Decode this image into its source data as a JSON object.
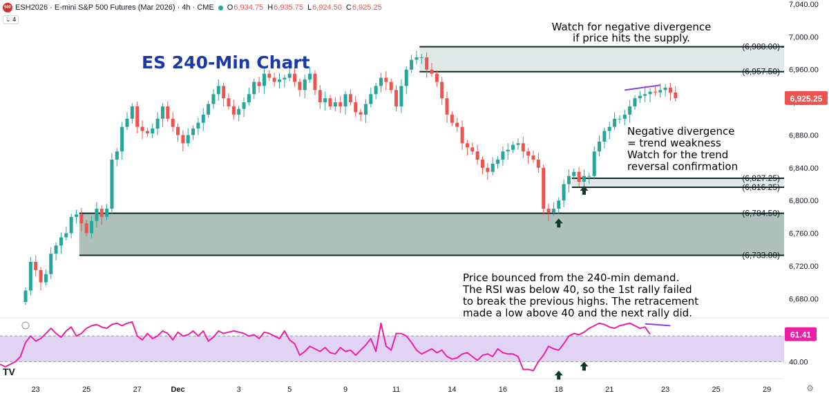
{
  "header": {
    "logo_text": "500",
    "symbol": "ESH2026",
    "name": "E-mini S&P 500 Futures (Mar 2026)",
    "interval": "4h",
    "exchange": "CME",
    "ohlc": [
      {
        "label": "O",
        "value": "6,934.75"
      },
      {
        "label": "H",
        "value": "6,935.75"
      },
      {
        "label": "L",
        "value": "6,924.50"
      },
      {
        "label": "C",
        "value": "6,925.25"
      }
    ],
    "indicator_count": "4"
  },
  "colors": {
    "up": "#26a69a",
    "down": "#ef5350",
    "zone_fill": "#9fb5ae",
    "zone_light": "#d6e2df",
    "zone_line": "#0c2a23",
    "rsi_line": "#ec1fa6",
    "rsi_band": "#d9c9ef",
    "div_line": "#8a3ee8",
    "title": "#1939a6",
    "arrow": "#0e3b31"
  },
  "chart_data": {
    "type": "candlestick",
    "title": "ES 240-Min Chart",
    "y_axis": {
      "min": 6660,
      "max": 7040,
      "ticks": [
        "6,680.00",
        "6,720.00",
        "6,760.00",
        "6,800.00",
        "6,840.00",
        "6,880.00",
        "6,920.00",
        "6,960.00",
        "7,000.00",
        "7,040.00"
      ],
      "tick_values": [
        6680,
        6720,
        6760,
        6800,
        6840,
        6880,
        6920,
        6960,
        7000,
        7040
      ]
    },
    "x_axis": {
      "labels": [
        "23",
        "25",
        "27",
        "Dec",
        "3",
        "5",
        "9",
        "11",
        "14",
        "16",
        "18",
        "21",
        "23",
        "25",
        "29"
      ],
      "bar_index": [
        2,
        12,
        22,
        30,
        42,
        52,
        63,
        73,
        84,
        94,
        105,
        115,
        126,
        136,
        146
      ],
      "bold": [
        "Dec"
      ]
    },
    "last_price": "6,925.25",
    "last_value": 6925.25,
    "zones": [
      {
        "name": "supply-zone",
        "top": 6988.0,
        "bottom": 6957.5,
        "start_bar": 78,
        "top_label": "(6,988.00)",
        "bottom_label": "(6,957.50)"
      },
      {
        "name": "minor-demand-zone",
        "top": 6827.25,
        "bottom": 6816.25,
        "start_bar": 108,
        "top_label": "(6,827.25)",
        "bottom_label": "(6,816.25)"
      },
      {
        "name": "demand-zone",
        "top": 6784.5,
        "bottom": 6733.0,
        "start_bar": 11,
        "top_label": "(6,784.50)",
        "bottom_label": "(6,733.00)"
      }
    ],
    "closes": [
      6690,
      6725,
      6715,
      6700,
      6710,
      6735,
      6745,
      6755,
      6760,
      6780,
      6783,
      6772,
      6760,
      6775,
      6790,
      6780,
      6790,
      6850,
      6860,
      6890,
      6900,
      6915,
      6890,
      6885,
      6882,
      6888,
      6900,
      6915,
      6900,
      6890,
      6880,
      6870,
      6880,
      6888,
      6895,
      6905,
      6918,
      6930,
      6940,
      6925,
      6915,
      6905,
      6912,
      6920,
      6930,
      6945,
      6940,
      6955,
      6950,
      6945,
      6948,
      6950,
      6955,
      6945,
      6935,
      6948,
      6955,
      6935,
      6920,
      6925,
      6915,
      6920,
      6915,
      6930,
      6920,
      6908,
      6905,
      6918,
      6930,
      6940,
      6950,
      6945,
      6935,
      6915,
      6940,
      6960,
      6972,
      6975,
      6975,
      6960,
      6955,
      6945,
      6925,
      6905,
      6895,
      6890,
      6870,
      6865,
      6860,
      6850,
      6840,
      6835,
      6845,
      6850,
      6860,
      6862,
      6868,
      6870,
      6860,
      6855,
      6850,
      6840,
      6790,
      6785,
      6790,
      6800,
      6820,
      6830,
      6835,
      6823,
      6830,
      6830,
      6860,
      6872,
      6885,
      6890,
      6900,
      6900,
      6905,
      6915,
      6925,
      6928,
      6930,
      6933,
      6932,
      6935,
      6938,
      6932,
      6925
    ],
    "rsi": {
      "value_label": "61.41",
      "last_value": 61.41,
      "level_label": "40.00",
      "band_top": 60,
      "band_bottom": 40,
      "min": 30,
      "max": 72,
      "values": [
        38,
        36,
        38,
        40,
        44,
        55,
        60,
        56,
        58,
        62,
        66,
        62,
        59,
        64,
        67,
        60,
        62,
        66,
        68,
        69,
        67,
        66,
        69,
        70,
        68,
        70,
        71,
        60,
        57,
        62,
        58,
        60,
        64,
        62,
        57,
        63,
        60,
        61,
        64,
        60,
        64,
        56,
        59,
        64,
        62,
        63,
        64,
        63,
        62,
        60,
        61,
        58,
        63,
        62,
        60,
        58,
        64,
        57,
        54,
        45,
        48,
        52,
        50,
        48,
        51,
        47,
        46,
        51,
        48,
        49,
        45,
        49,
        53,
        58,
        48,
        70,
        52,
        49,
        62,
        62,
        60,
        55,
        49,
        46,
        48,
        50,
        47,
        49,
        44,
        42,
        43,
        46,
        47,
        44,
        41,
        45,
        46,
        44,
        50,
        47,
        46,
        46,
        44,
        34,
        34,
        33,
        40,
        45,
        52,
        50,
        49,
        54,
        60,
        62,
        61,
        63,
        66,
        68,
        70,
        69,
        67,
        66,
        68,
        69,
        70,
        68,
        66,
        67,
        61.4
      ]
    },
    "drawings": {
      "price_divergence": {
        "bar_from": 118,
        "bar_to": 125,
        "from": 6935,
        "to": 6941
      },
      "rsi_divergence": {
        "bar_from": 122,
        "bar_to": 127,
        "from": 69.5,
        "to": 68
      },
      "price_arrows": [
        {
          "bar": 105,
          "value": 6778
        },
        {
          "bar": 110,
          "value": 6818
        }
      ],
      "rsi_arrows": [
        {
          "bar": 105,
          "value": 33
        },
        {
          "bar": 110,
          "value": 40
        }
      ]
    }
  },
  "annotations": {
    "top": [
      "Watch for negative divergence",
      "if price hits the supply."
    ],
    "middle": [
      "Negative divergence",
      "= trend weakness",
      "Watch for the trend",
      "reversal confirmation"
    ],
    "bottom": [
      "Price bounced from the 240-min demand.",
      "The RSI was below 40, so the 1st rally failed",
      "to break the previous highs. The retracement",
      "made a low above 40 and the next rally did."
    ]
  },
  "footer": {
    "brand": "TV",
    "settings_icon": "gear-icon"
  }
}
